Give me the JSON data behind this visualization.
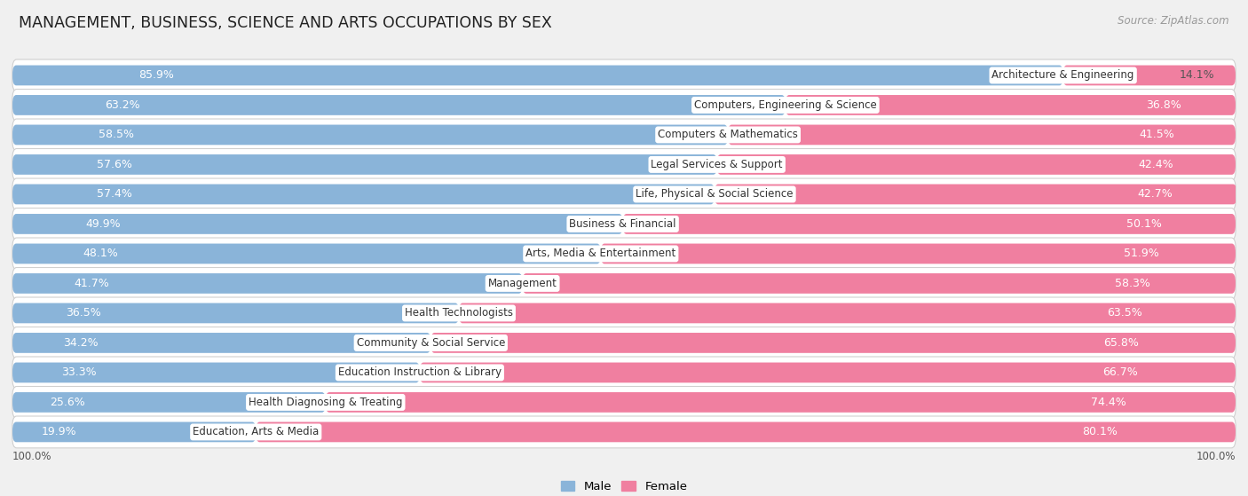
{
  "title": "MANAGEMENT, BUSINESS, SCIENCE AND ARTS OCCUPATIONS BY SEX",
  "source": "Source: ZipAtlas.com",
  "categories": [
    "Architecture & Engineering",
    "Computers, Engineering & Science",
    "Computers & Mathematics",
    "Legal Services & Support",
    "Life, Physical & Social Science",
    "Business & Financial",
    "Arts, Media & Entertainment",
    "Management",
    "Health Technologists",
    "Community & Social Service",
    "Education Instruction & Library",
    "Health Diagnosing & Treating",
    "Education, Arts & Media"
  ],
  "male": [
    85.9,
    63.2,
    58.5,
    57.6,
    57.4,
    49.9,
    48.1,
    41.7,
    36.5,
    34.2,
    33.3,
    25.6,
    19.9
  ],
  "female": [
    14.1,
    36.8,
    41.5,
    42.4,
    42.7,
    50.1,
    51.9,
    58.3,
    63.5,
    65.8,
    66.7,
    74.4,
    80.1
  ],
  "male_color": "#8ab4d9",
  "female_color": "#f07fa0",
  "bg_color": "#f0f0f0",
  "row_bg_color": "#ffffff",
  "title_fontsize": 12.5,
  "label_fontsize": 8.5,
  "bar_text_fontsize": 9,
  "legend_fontsize": 9.5
}
